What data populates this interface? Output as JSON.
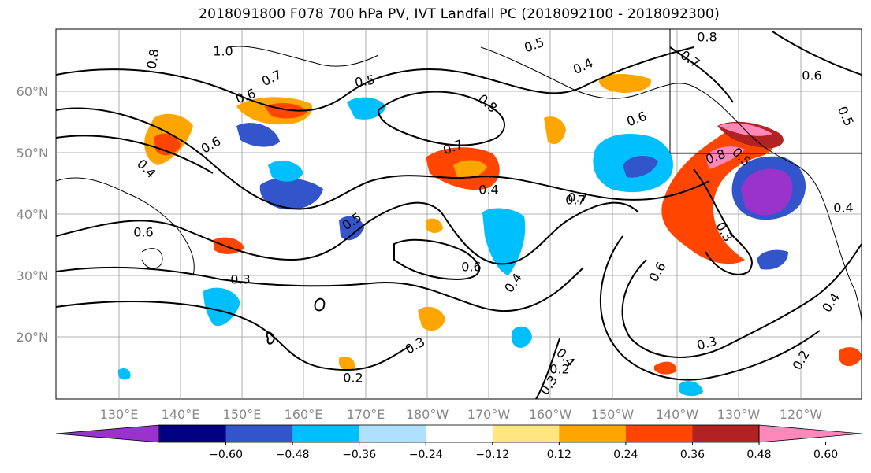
{
  "title": "2018091800 F078 700 hPa PV, IVT Landfall PC (2018092100 - 2018092300)",
  "map": {
    "lat_labels": [
      "60°N",
      "50°N",
      "40°N",
      "30°N",
      "20°N"
    ],
    "lon_labels": [
      "130°E",
      "140°E",
      "150°E",
      "160°E",
      "170°E",
      "180°W",
      "170°W",
      "160°W",
      "150°W",
      "140°W",
      "130°W",
      "120°W"
    ],
    "contour_labels": [
      "1.0",
      "0.8",
      "0.7",
      "0.5",
      "0.6",
      "0.6",
      "0.8",
      "0.7",
      "0.6",
      "0.4",
      "0.7",
      "0.5",
      "0.4",
      "0.6",
      "0.7",
      "0.8",
      "0.7",
      "0.6",
      "0.5",
      "0.4",
      "0.3",
      "0.5",
      "0.6",
      "0.4",
      "0.3",
      "0.2",
      "0.4",
      "0.2",
      "0.3",
      "0.6",
      "0.3",
      "0.2",
      "0.4",
      "0.5",
      "0.4",
      "0.8",
      "0.3"
    ]
  },
  "colorbar": {
    "colors": [
      "#9933cc",
      "#000080",
      "#3355cc",
      "#00bfff",
      "#b0e0ff",
      "#ffffff",
      "#ffe680",
      "#ffa500",
      "#ff4500",
      "#b22222",
      "#ff88bb"
    ],
    "tick_labels": [
      "−0.60",
      "−0.48",
      "−0.36",
      "−0.24",
      "−0.12",
      "0.12",
      "0.24",
      "0.36",
      "0.48",
      "0.60"
    ]
  }
}
